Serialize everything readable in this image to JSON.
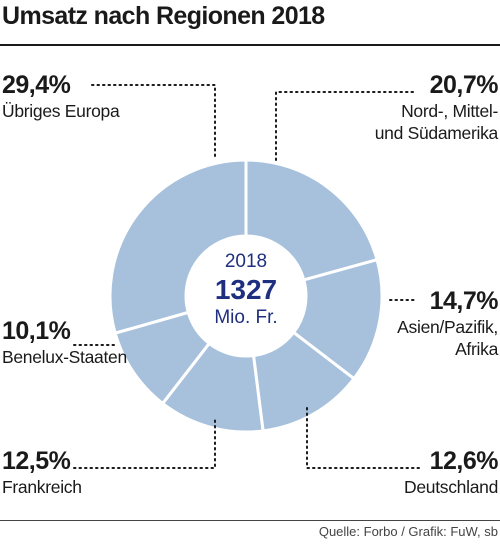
{
  "header": {
    "title": "Umsatz nach Regionen 2018"
  },
  "footer": {
    "source": "Quelle: Forbo / Grafik: FuW, sb"
  },
  "center": {
    "year": "2018",
    "total": "1327",
    "unit": "Mio. Fr."
  },
  "colors": {
    "slice": "#a7c1dd",
    "separator": "#ffffff",
    "center_text": "#1f2f80",
    "leader": "#1a1a1a"
  },
  "chart_data": {
    "type": "pie",
    "style": "donut",
    "title": "Umsatz nach Regionen 2018",
    "center_label": "2018 1327 Mio. Fr.",
    "slices": [
      {
        "label": "Nord-, Mittel- und Südamerika",
        "value": 20.7,
        "display": "20,7%",
        "line1": "Nord-, Mittel-",
        "line2": "und Südamerika"
      },
      {
        "label": "Asien/Pazifik, Afrika",
        "value": 14.7,
        "display": "14,7%",
        "line1": "Asien/Pazifik,",
        "line2": "Afrika"
      },
      {
        "label": "Deutschland",
        "value": 12.6,
        "display": "12,6%",
        "line1": "Deutschland",
        "line2": ""
      },
      {
        "label": "Frankreich",
        "value": 12.5,
        "display": "12,5%",
        "line1": "Frankreich",
        "line2": ""
      },
      {
        "label": "Benelux-Staaten",
        "value": 10.1,
        "display": "10,1%",
        "line1": "Benelux-Staaten",
        "line2": ""
      },
      {
        "label": "Übriges Europa",
        "value": 29.4,
        "display": "29,4%",
        "line1": "Übriges Europa",
        "line2": ""
      }
    ]
  }
}
